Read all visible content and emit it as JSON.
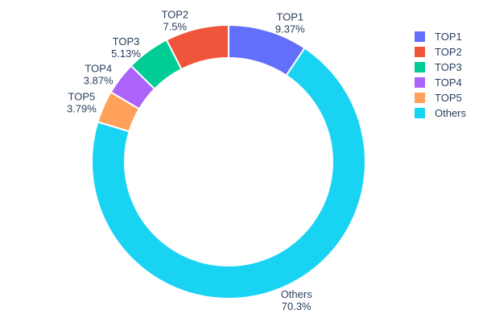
{
  "chart_data": {
    "type": "pie",
    "subtype": "donut",
    "title": "",
    "labels": [
      "TOP1",
      "TOP2",
      "TOP3",
      "TOP4",
      "TOP5",
      "Others"
    ],
    "values": [
      9.37,
      7.5,
      5.13,
      3.87,
      3.79,
      70.3
    ],
    "percent_labels": [
      "9.37%",
      "7.5%",
      "5.13%",
      "3.87%",
      "3.79%",
      "70.3%"
    ],
    "colors": [
      "#636efa",
      "#ef553b",
      "#00cc96",
      "#ab63fa",
      "#ffa15a",
      "#19d3f3"
    ],
    "text_color": "#2a3f5f",
    "hole": 0.76,
    "legend_position": "right",
    "label_position": "outside",
    "slice_order_clockwise_from_top": [
      "TOP1",
      "Others",
      "TOP5",
      "TOP4",
      "TOP3",
      "TOP2"
    ]
  }
}
